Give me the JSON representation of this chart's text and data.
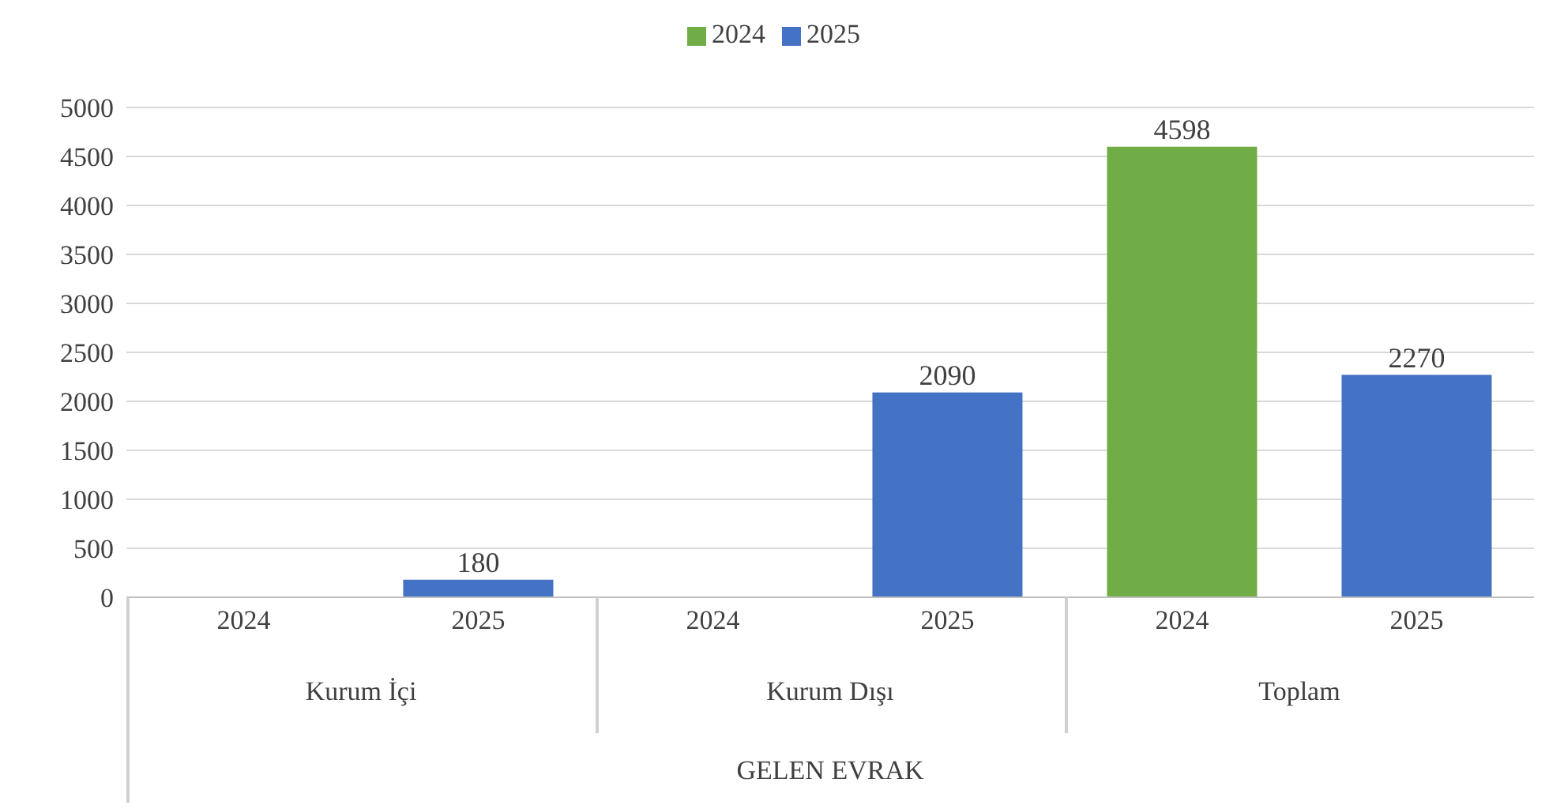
{
  "chart_data": {
    "type": "bar",
    "xlabel": "GELEN EVRAK",
    "categories": [
      "2024",
      "2025",
      "2024",
      "2025",
      "2024",
      "2025"
    ],
    "annotations": [
      "Kurum İçi",
      "Kurum  Dışı",
      "Toplam"
    ],
    "series": [
      {
        "name": "2024",
        "color": "#70ad47",
        "values": [
          null,
          null,
          null,
          null,
          4598,
          null
        ]
      },
      {
        "name": "2025",
        "color": "#4472c4",
        "values": [
          null,
          180,
          null,
          2090,
          null,
          2270
        ]
      }
    ],
    "ylim": [
      0,
      5000
    ],
    "yticks": [
      0,
      500,
      1000,
      1500,
      2000,
      2500,
      3000,
      3500,
      4000,
      4500,
      5000
    ],
    "grid": "y",
    "legend": "top",
    "data_labels": true
  }
}
